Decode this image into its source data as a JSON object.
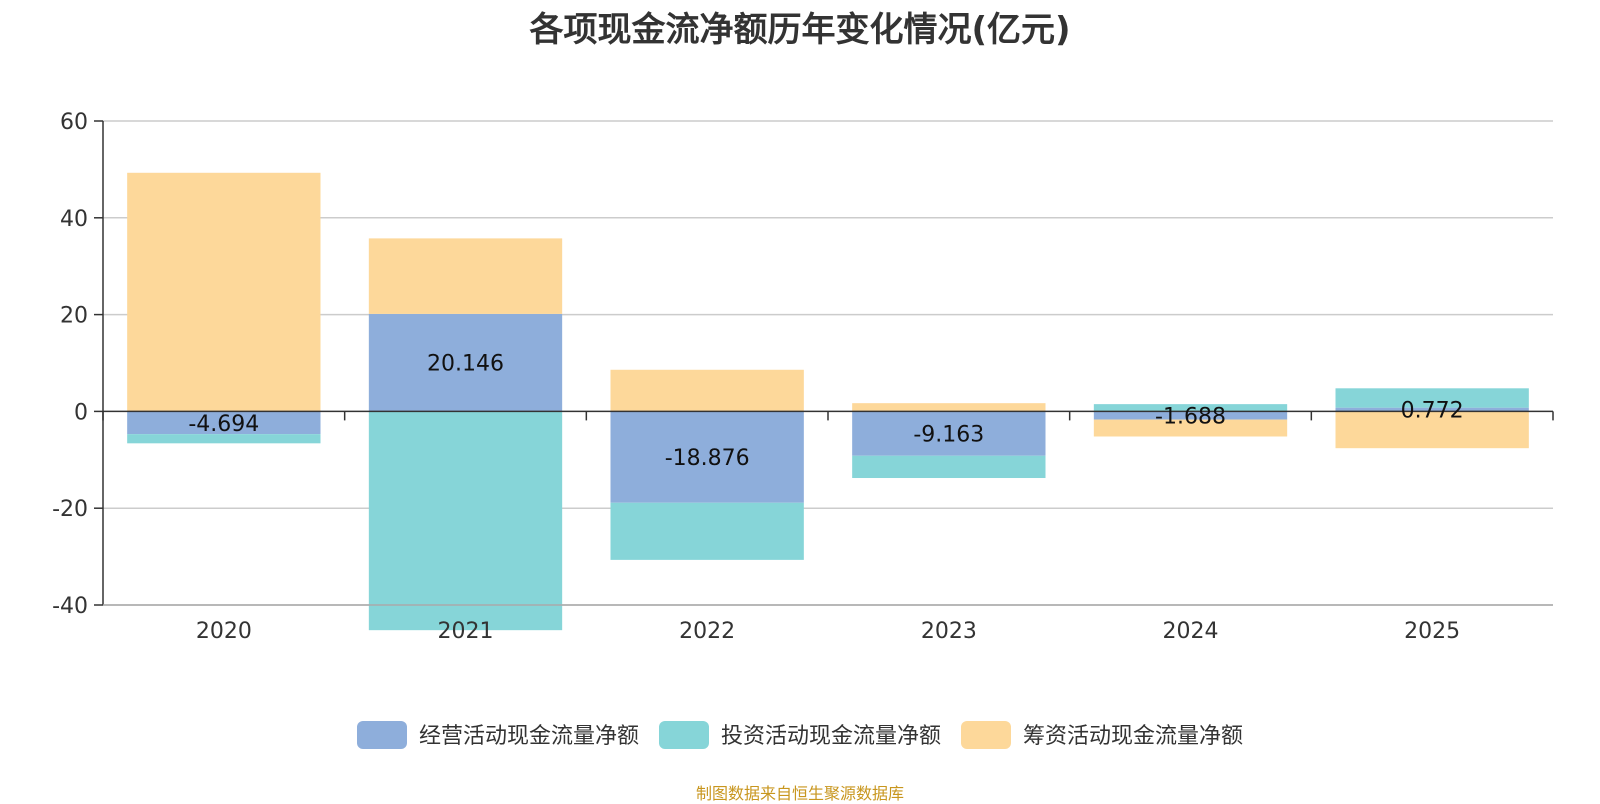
{
  "chart_data": {
    "type": "bar",
    "stacked": true,
    "title": "各项现金流净额历年变化情况(亿元)",
    "categories": [
      "2020",
      "2021",
      "2022",
      "2023",
      "2024",
      "2025"
    ],
    "ylim": [
      -40,
      60
    ],
    "yticks": [
      -40,
      -20,
      0,
      20,
      40,
      60
    ],
    "grid": true,
    "legend_position": "bottom",
    "series": [
      {
        "name": "经营活动现金流量净额",
        "color": "#8eaedb",
        "values": [
          -4.694,
          20.146,
          -18.876,
          -9.163,
          -1.688,
          0.772
        ],
        "labels": [
          "-4.694",
          "20.146",
          "-18.876",
          "-9.163",
          "-1.688",
          "0.772"
        ]
      },
      {
        "name": "投资活动现金流量净额",
        "color": "#86d5d8",
        "values": [
          -1.9,
          -45.2,
          -11.8,
          -4.6,
          1.5,
          4.0
        ]
      },
      {
        "name": "筹资活动现金流量净额",
        "color": "#fdd89a",
        "values": [
          49.3,
          15.6,
          8.6,
          1.7,
          -3.5,
          -7.6
        ]
      }
    ]
  },
  "source_text": "制图数据来自恒生聚源数据库"
}
